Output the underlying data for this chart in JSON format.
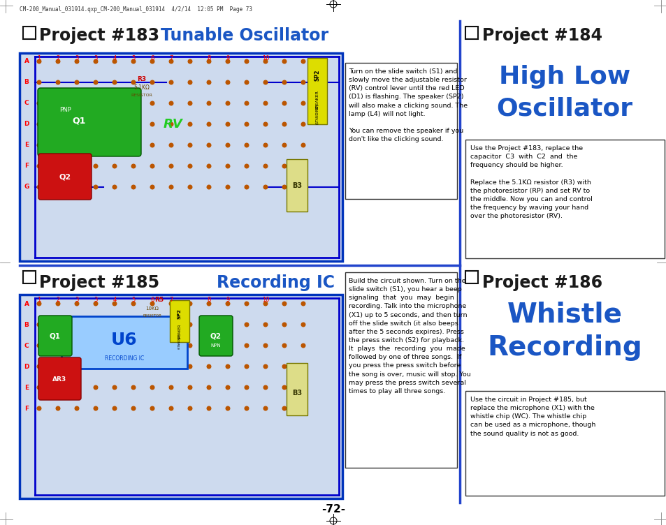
{
  "page_bg": "#ffffff",
  "page_number": "-72-",
  "header_text": "CM-200_Manual_031914.qxp_CM-200_Manual_031914  4/2/14  12:05 PM  Page 73",
  "proj183_label": "Project #183",
  "proj183_title": "Tunable Oscillator",
  "proj184_label": "Project #184",
  "proj184_title1": "High Low",
  "proj184_title2": "Oscillator",
  "proj185_label": "Project #185",
  "proj185_title": "Recording IC",
  "proj186_label": "Project #186",
  "proj186_title1": "Whistle",
  "proj186_title2": "Recording",
  "black_color": "#1a1a1a",
  "blue_color": "#1a56c4",
  "divider_blue": "#2244cc",
  "wire_blue": "#0000cc",
  "text183": "Turn on the slide switch (S1) and\nslowly move the adjustable resistor\n(RV) control lever until the red LED\n(D1) is flashing. The speaker (SP2)\nwill also make a clicking sound. The\nlamp (L4) will not light.\n\nYou can remove the speaker if you\ndon't like the clicking sound.",
  "text184": "Use the Project #183, replace the\ncapacitor  C3  with  C2  and  the\nfrequency should be higher.\n\nReplace the 5.1KΩ resistor (R3) with\nthe photoresistor (RP) and set RV to\nthe middle. Now you can and control\nthe frequency by waving your hand\nover the photoresistor (RV).",
  "text185": "Build the circuit shown. Turn on the\nslide switch (S1), you hear a beep\nsignaling  that  you  may  begin\nrecording. Talk into the microphone\n(X1) up to 5 seconds, and then turn\noff the slide switch (it also beeps\nafter the 5 seconds expires). Press\nthe press switch (S2) for playback.\nIt  plays  the  recording  you  made\nfollowed by one of three songs.  If\nyou press the press switch before\nthe song is over, music will stop. You\nmay press the press switch several\ntimes to play all three songs.",
  "text186": "Use the circuit in Project #185, but\nreplace the microphone (X1) with the\nwhistle chip (WC). The whistle chip\ncan be used as a microphone, though\nthe sound quality is not as good."
}
